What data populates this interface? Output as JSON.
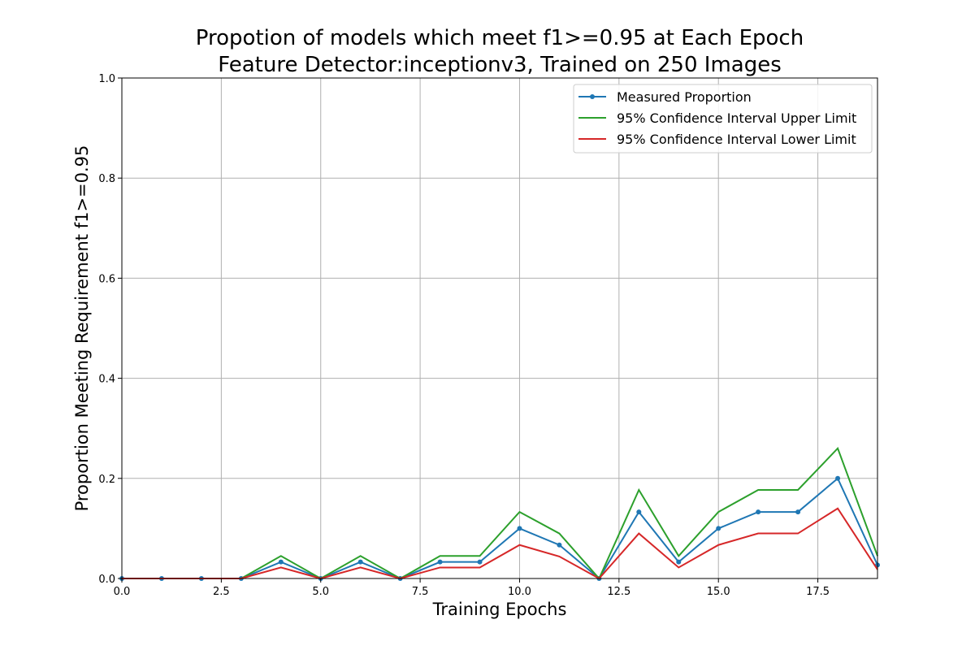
{
  "chart_data": {
    "type": "line",
    "title": "Propotion of models which meet f1>=0.95 at Each Epoch",
    "subtitle": "Feature Detector:inceptionv3, Trained on 250 Images",
    "xlabel": "Training Epochs",
    "ylabel": "Proportion Meeting Requirement f1>=0.95",
    "xlim": [
      0,
      19
    ],
    "ylim": [
      0,
      1.0
    ],
    "xticks": [
      "0.0",
      "2.5",
      "5.0",
      "7.5",
      "10.0",
      "12.5",
      "15.0",
      "17.5"
    ],
    "yticks": [
      "0.0",
      "0.2",
      "0.4",
      "0.6",
      "0.8",
      "1.0"
    ],
    "grid": true,
    "legend_position": "top-right",
    "x": [
      0,
      1,
      2,
      3,
      4,
      5,
      6,
      7,
      8,
      9,
      10,
      11,
      12,
      13,
      14,
      15,
      16,
      17,
      18,
      19
    ],
    "series": [
      {
        "name": "Measured Proportion",
        "color": "#1f77b4",
        "marker": "dot",
        "values": [
          0,
          0,
          0,
          0,
          0.033,
          0,
          0.033,
          0,
          0.033,
          0.033,
          0.1,
          0.067,
          0,
          0.133,
          0.033,
          0.1,
          0.133,
          0.133,
          0.2,
          0.027
        ]
      },
      {
        "name": "95% Confidence Interval Upper Limit",
        "color": "#2ca02c",
        "marker": "none",
        "values": [
          0,
          0,
          0,
          0,
          0.045,
          0,
          0.045,
          0,
          0.045,
          0.045,
          0.133,
          0.09,
          0,
          0.177,
          0.045,
          0.133,
          0.177,
          0.177,
          0.26,
          0.045
        ]
      },
      {
        "name": "95% Confidence Interval Lower Limit",
        "color": "#d62728",
        "marker": "none",
        "values": [
          0,
          0,
          0,
          0,
          0.022,
          0,
          0.022,
          0,
          0.022,
          0.022,
          0.067,
          0.044,
          0,
          0.09,
          0.022,
          0.067,
          0.09,
          0.09,
          0.14,
          0.018
        ]
      }
    ]
  }
}
